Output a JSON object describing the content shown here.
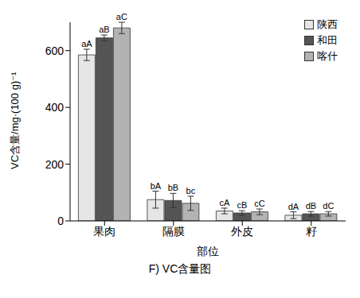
{
  "chart_data": {
    "type": "bar",
    "title": "F) VC含量图",
    "x_label": "部位",
    "y_label": "VC含量/mg·(100 g)⁻¹",
    "categories": [
      "果肉",
      "隔膜",
      "外皮",
      "籽"
    ],
    "series": [
      {
        "name": "陕西",
        "color": "#e6e6e6",
        "values": [
          585,
          75,
          35,
          20
        ],
        "errors": [
          20,
          30,
          10,
          12
        ],
        "letters": [
          "aA",
          "bA",
          "cA",
          "dA"
        ]
      },
      {
        "name": "和田",
        "color": "#555555",
        "values": [
          645,
          72,
          28,
          25
        ],
        "errors": [
          10,
          25,
          8,
          8
        ],
        "letters": [
          "aB",
          "bB",
          "cB",
          "dB"
        ]
      },
      {
        "name": "喀什",
        "color": "#b3b3b3",
        "values": [
          680,
          62,
          32,
          25
        ],
        "errors": [
          20,
          25,
          10,
          8
        ],
        "letters": [
          "aC",
          "bc",
          "cC",
          "dC"
        ]
      }
    ],
    "ylim": [
      0,
      700
    ],
    "yticks": [
      0,
      200,
      400,
      600
    ],
    "grid": false,
    "legend": "upper right"
  }
}
